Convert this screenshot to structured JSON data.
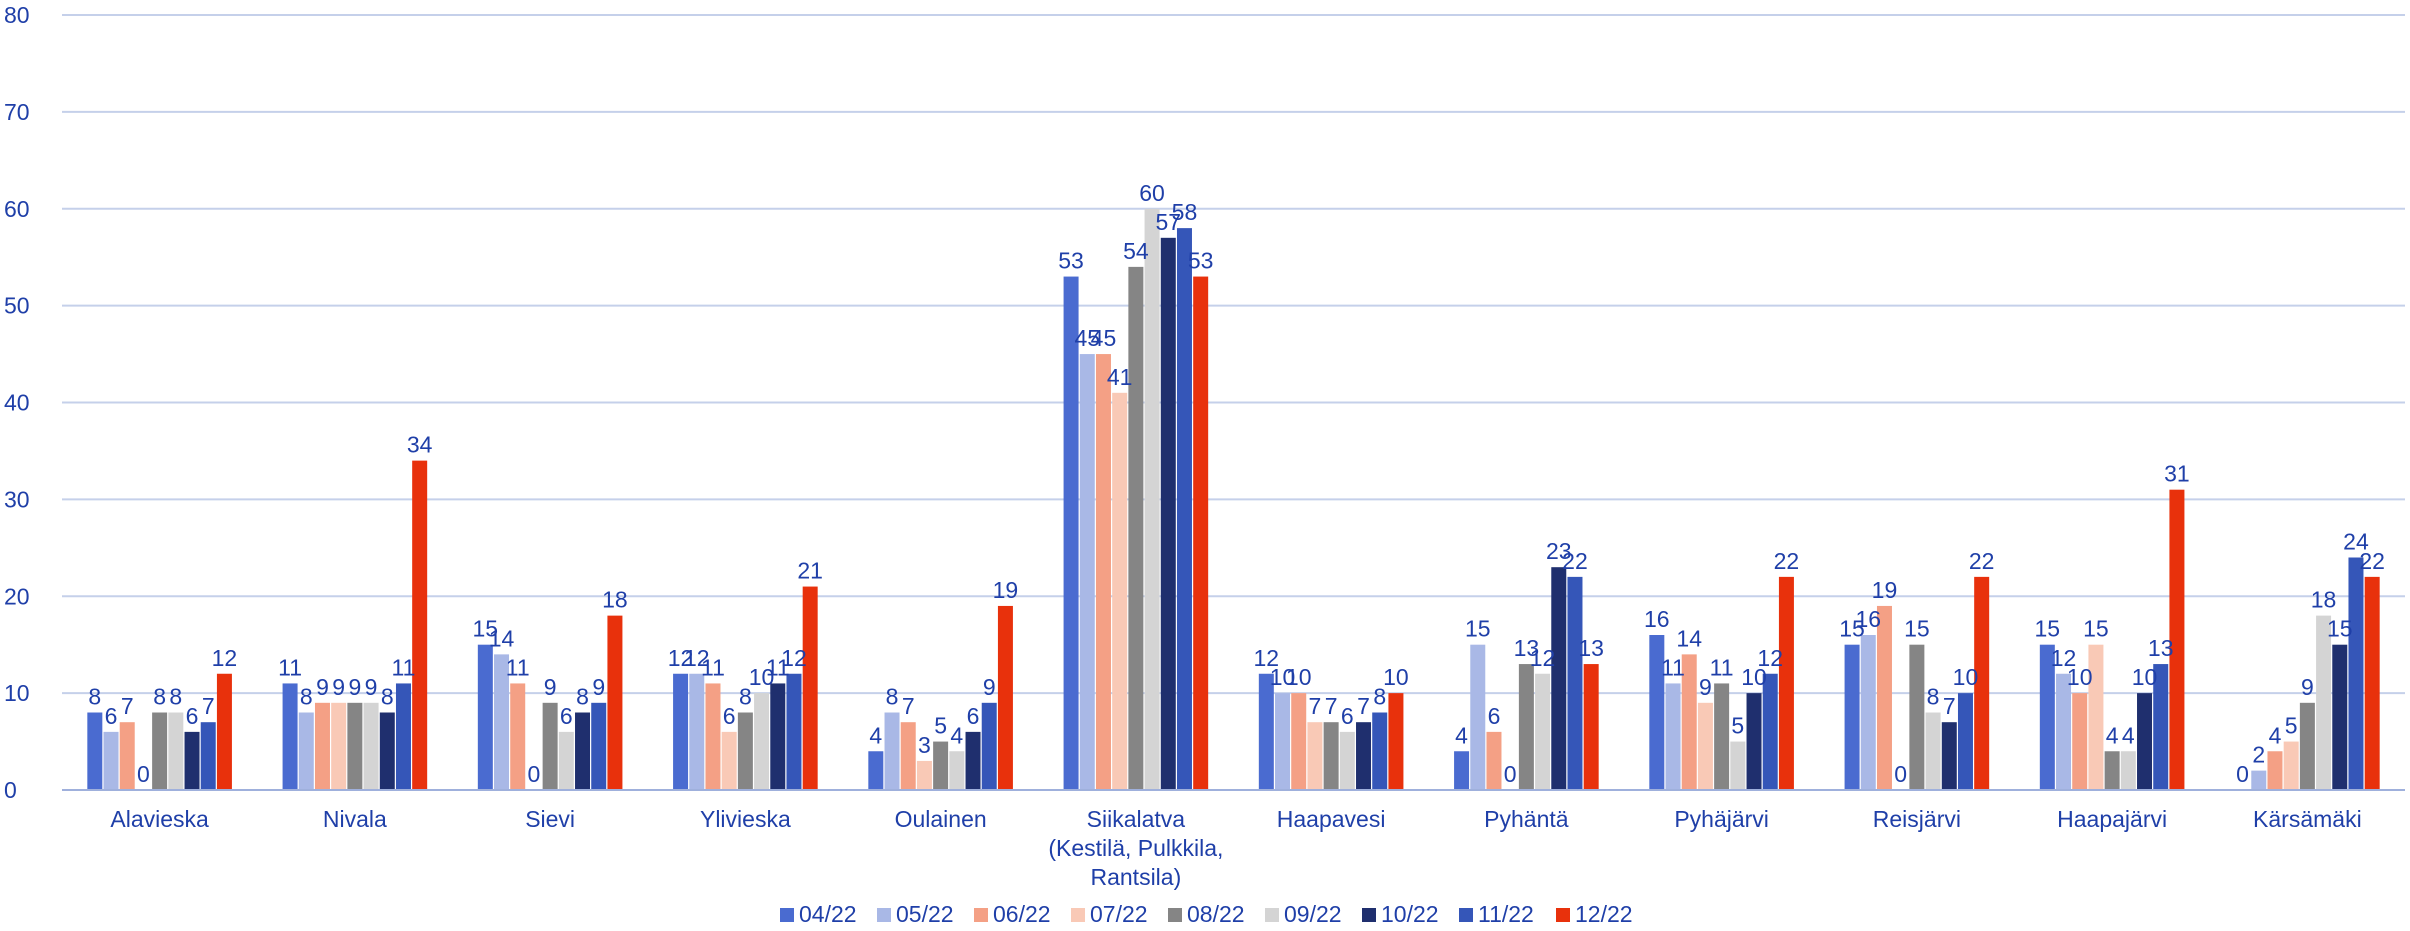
{
  "chart_data": {
    "type": "bar",
    "title": "",
    "xlabel": "",
    "ylabel": "",
    "ylim": [
      0,
      80
    ],
    "yticks": [
      0,
      10,
      20,
      30,
      40,
      50,
      60,
      70,
      80
    ],
    "grid": true,
    "legend": "bottom",
    "categories": [
      [
        "Alavieska"
      ],
      [
        "Nivala"
      ],
      [
        "Sievi"
      ],
      [
        "Ylivieska"
      ],
      [
        "Oulainen"
      ],
      [
        "Siikalatva",
        "(Kestilä, Pulkkila,",
        "Rantsila)"
      ],
      [
        "Haapavesi"
      ],
      [
        "Pyhäntä"
      ],
      [
        "Pyhäjärvi"
      ],
      [
        "Reisjärvi"
      ],
      [
        "Haapajärvi"
      ],
      [
        "Kärsämäki"
      ]
    ],
    "series": [
      {
        "name": "04/22",
        "color": "#4a6bd0",
        "values": [
          8,
          11,
          15,
          12,
          4,
          53,
          12,
          4,
          16,
          15,
          15,
          0
        ]
      },
      {
        "name": "05/22",
        "color": "#a9b8e6",
        "values": [
          6,
          8,
          14,
          12,
          8,
          45,
          10,
          15,
          11,
          16,
          12,
          2
        ]
      },
      {
        "name": "06/22",
        "color": "#f4a085",
        "values": [
          7,
          9,
          11,
          11,
          7,
          45,
          10,
          6,
          14,
          19,
          10,
          4
        ]
      },
      {
        "name": "07/22",
        "color": "#f9c9b6",
        "values": [
          0,
          9,
          0,
          6,
          3,
          41,
          7,
          0,
          9,
          0,
          15,
          5
        ]
      },
      {
        "name": "08/22",
        "color": "#858585",
        "values": [
          8,
          9,
          9,
          8,
          5,
          54,
          7,
          13,
          11,
          15,
          4,
          9
        ]
      },
      {
        "name": "09/22",
        "color": "#d4d4d4",
        "values": [
          8,
          9,
          6,
          10,
          4,
          60,
          6,
          12,
          5,
          8,
          4,
          18
        ]
      },
      {
        "name": "10/22",
        "color": "#1f2f6e",
        "values": [
          6,
          8,
          8,
          11,
          6,
          57,
          7,
          23,
          10,
          7,
          10,
          15
        ]
      },
      {
        "name": "11/22",
        "color": "#3556b8",
        "values": [
          7,
          11,
          9,
          12,
          9,
          58,
          8,
          22,
          12,
          10,
          13,
          24
        ]
      },
      {
        "name": "12/22",
        "color": "#e8310c",
        "values": [
          12,
          34,
          18,
          21,
          19,
          53,
          10,
          13,
          22,
          22,
          31,
          22
        ]
      }
    ]
  }
}
